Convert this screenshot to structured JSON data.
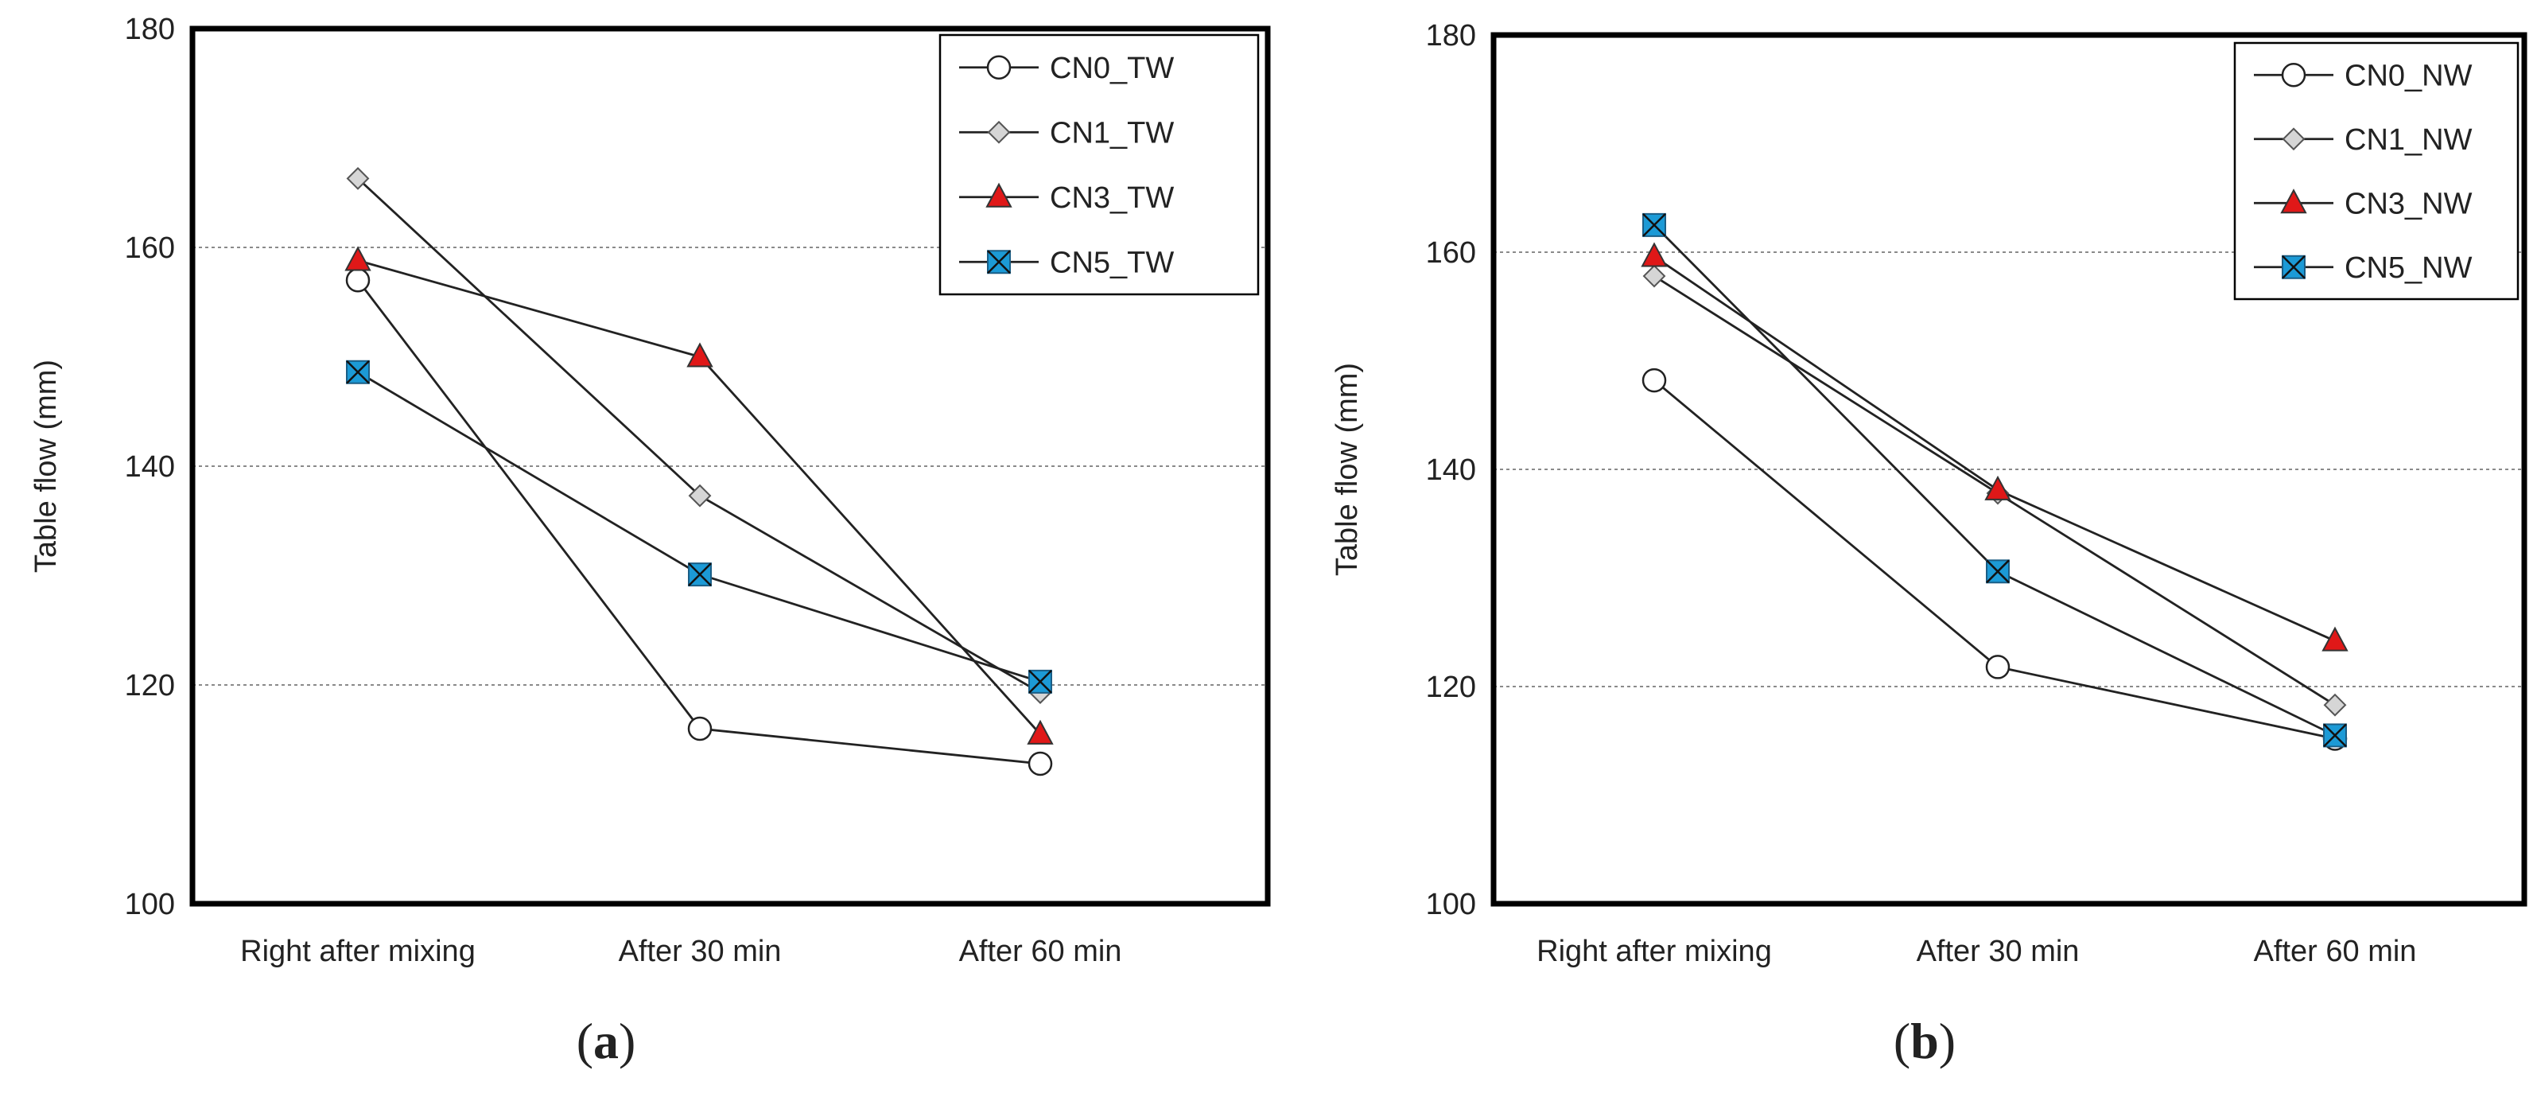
{
  "colors": {
    "line": "#222222",
    "grid": "#8a8a8a",
    "red": "#e01818",
    "blue": "#1c9ad6",
    "diamond": "#d6d6d6",
    "frame": "#000000"
  },
  "chart_data": [
    {
      "type": "line",
      "caption": "a",
      "ylabel": "Table flow (mm)",
      "xlabel": "",
      "categories": [
        "Right after mixing",
        "After 30 min",
        "After 60 min"
      ],
      "ylim": [
        100,
        180
      ],
      "yticks": [
        100,
        120,
        140,
        160,
        180
      ],
      "grid": true,
      "legend": "top-right",
      "series": [
        {
          "name": "CN0_TW",
          "marker": "circle",
          "values": [
            157,
            116,
            112.8
          ]
        },
        {
          "name": "CN1_TW",
          "marker": "diamond",
          "values": [
            166.3,
            137.3,
            119.3
          ]
        },
        {
          "name": "CN3_TW",
          "marker": "triangle",
          "values": [
            158.8,
            150,
            115.5
          ]
        },
        {
          "name": "CN5_TW",
          "marker": "xsquare",
          "values": [
            148.6,
            130.1,
            120.3
          ]
        }
      ]
    },
    {
      "type": "line",
      "caption": "b",
      "ylabel": "Table flow (mm)",
      "xlabel": "",
      "categories": [
        "Right after mixing",
        "After 30 min",
        "After 60 min"
      ],
      "ylim": [
        100,
        180
      ],
      "yticks": [
        100,
        120,
        140,
        160,
        180
      ],
      "grid": true,
      "legend": "top-right",
      "series": [
        {
          "name": "CN0_NW",
          "marker": "circle",
          "values": [
            148.2,
            121.8,
            115.2
          ]
        },
        {
          "name": "CN1_NW",
          "marker": "diamond",
          "values": [
            157.8,
            137.8,
            118.3
          ]
        },
        {
          "name": "CN3_NW",
          "marker": "triangle",
          "values": [
            159.6,
            138.1,
            124.2
          ]
        },
        {
          "name": "CN5_NW",
          "marker": "xsquare",
          "values": [
            162.5,
            130.6,
            115.5
          ]
        }
      ]
    }
  ]
}
